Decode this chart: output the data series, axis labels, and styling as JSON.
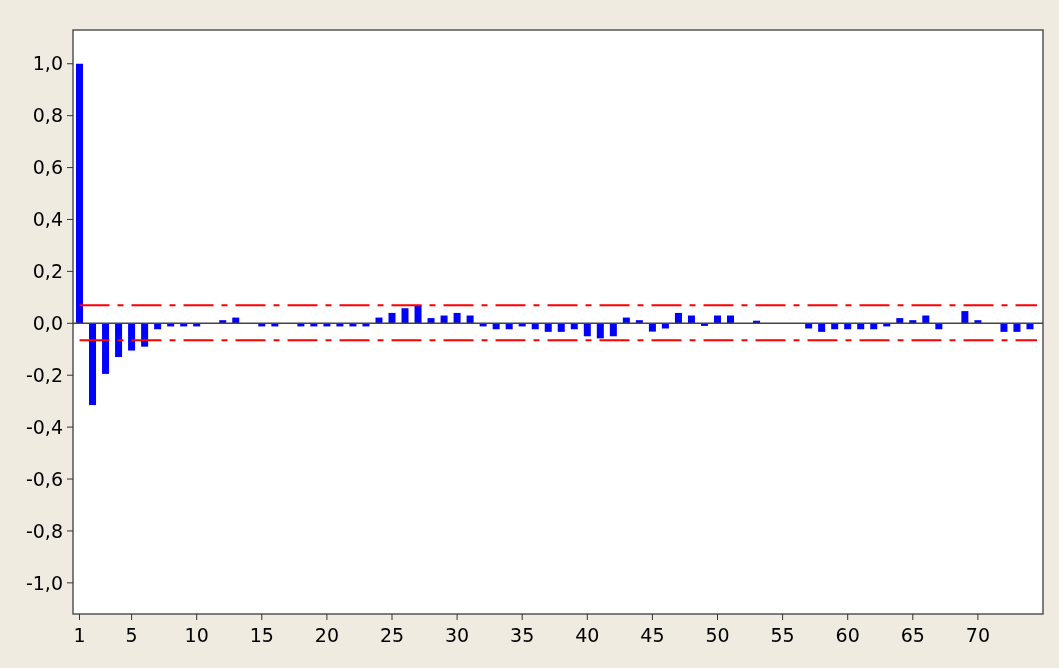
{
  "chart_data": {
    "type": "bar",
    "x": [
      1,
      2,
      3,
      4,
      5,
      6,
      7,
      8,
      9,
      10,
      11,
      12,
      13,
      14,
      15,
      16,
      17,
      18,
      19,
      20,
      21,
      22,
      23,
      24,
      25,
      26,
      27,
      28,
      29,
      30,
      31,
      32,
      33,
      34,
      35,
      36,
      37,
      38,
      39,
      40,
      41,
      42,
      43,
      44,
      45,
      46,
      47,
      48,
      49,
      50,
      51,
      52,
      53,
      54,
      55,
      56,
      57,
      58,
      59,
      60,
      61,
      62,
      63,
      64,
      65,
      66,
      67,
      68,
      69,
      70,
      71,
      72,
      73,
      74
    ],
    "values": [
      1.0,
      -0.315,
      -0.195,
      -0.13,
      -0.105,
      -0.09,
      -0.023,
      -0.012,
      -0.012,
      -0.012,
      0,
      0.012,
      0.022,
      0,
      -0.012,
      -0.012,
      0,
      -0.012,
      -0.012,
      -0.012,
      -0.012,
      -0.012,
      -0.012,
      0.022,
      0.04,
      0.058,
      0.07,
      0.02,
      0.03,
      0.04,
      0.03,
      -0.012,
      -0.023,
      -0.023,
      -0.012,
      -0.023,
      -0.033,
      -0.033,
      -0.023,
      -0.05,
      -0.058,
      -0.05,
      0.022,
      0.012,
      -0.032,
      -0.02,
      0.04,
      0.03,
      -0.01,
      0.03,
      0.03,
      0,
      0.01,
      0,
      0,
      0,
      -0.02,
      -0.033,
      -0.023,
      -0.023,
      -0.023,
      -0.023,
      -0.012,
      0.02,
      0.012,
      0.03,
      -0.023,
      0,
      0.047,
      0.012,
      0,
      -0.033,
      -0.033,
      -0.023
    ],
    "color": "#0000ff",
    "xlim": [
      0.5,
      75
    ],
    "xticks": [
      1,
      5,
      10,
      15,
      20,
      25,
      30,
      35,
      40,
      45,
      50,
      55,
      60,
      65,
      70
    ],
    "ylim": [
      -1.12,
      1.13
    ],
    "yticks": [
      {
        "value": -1,
        "label": "-1,0"
      },
      {
        "value": -0.8,
        "label": "-0,8"
      },
      {
        "value": -0.6,
        "label": "-0,6"
      },
      {
        "value": -0.4,
        "label": "-0,4"
      },
      {
        "value": -0.2,
        "label": "-0,2"
      },
      {
        "value": 0,
        "label": "0,0"
      },
      {
        "value": 0.2,
        "label": "0,2"
      },
      {
        "value": 0.4,
        "label": "0,4"
      },
      {
        "value": 0.6,
        "label": "0,6"
      },
      {
        "value": 0.8,
        "label": "0,8"
      },
      {
        "value": 1,
        "label": "1,0"
      }
    ],
    "ref_lines": [
      {
        "axis": "y",
        "value": 0.07,
        "color": "#ff0000",
        "line_style": "dashed"
      },
      {
        "axis": "y",
        "value": -0.065,
        "color": "#ff0000",
        "line_style": "dashed"
      }
    ]
  }
}
